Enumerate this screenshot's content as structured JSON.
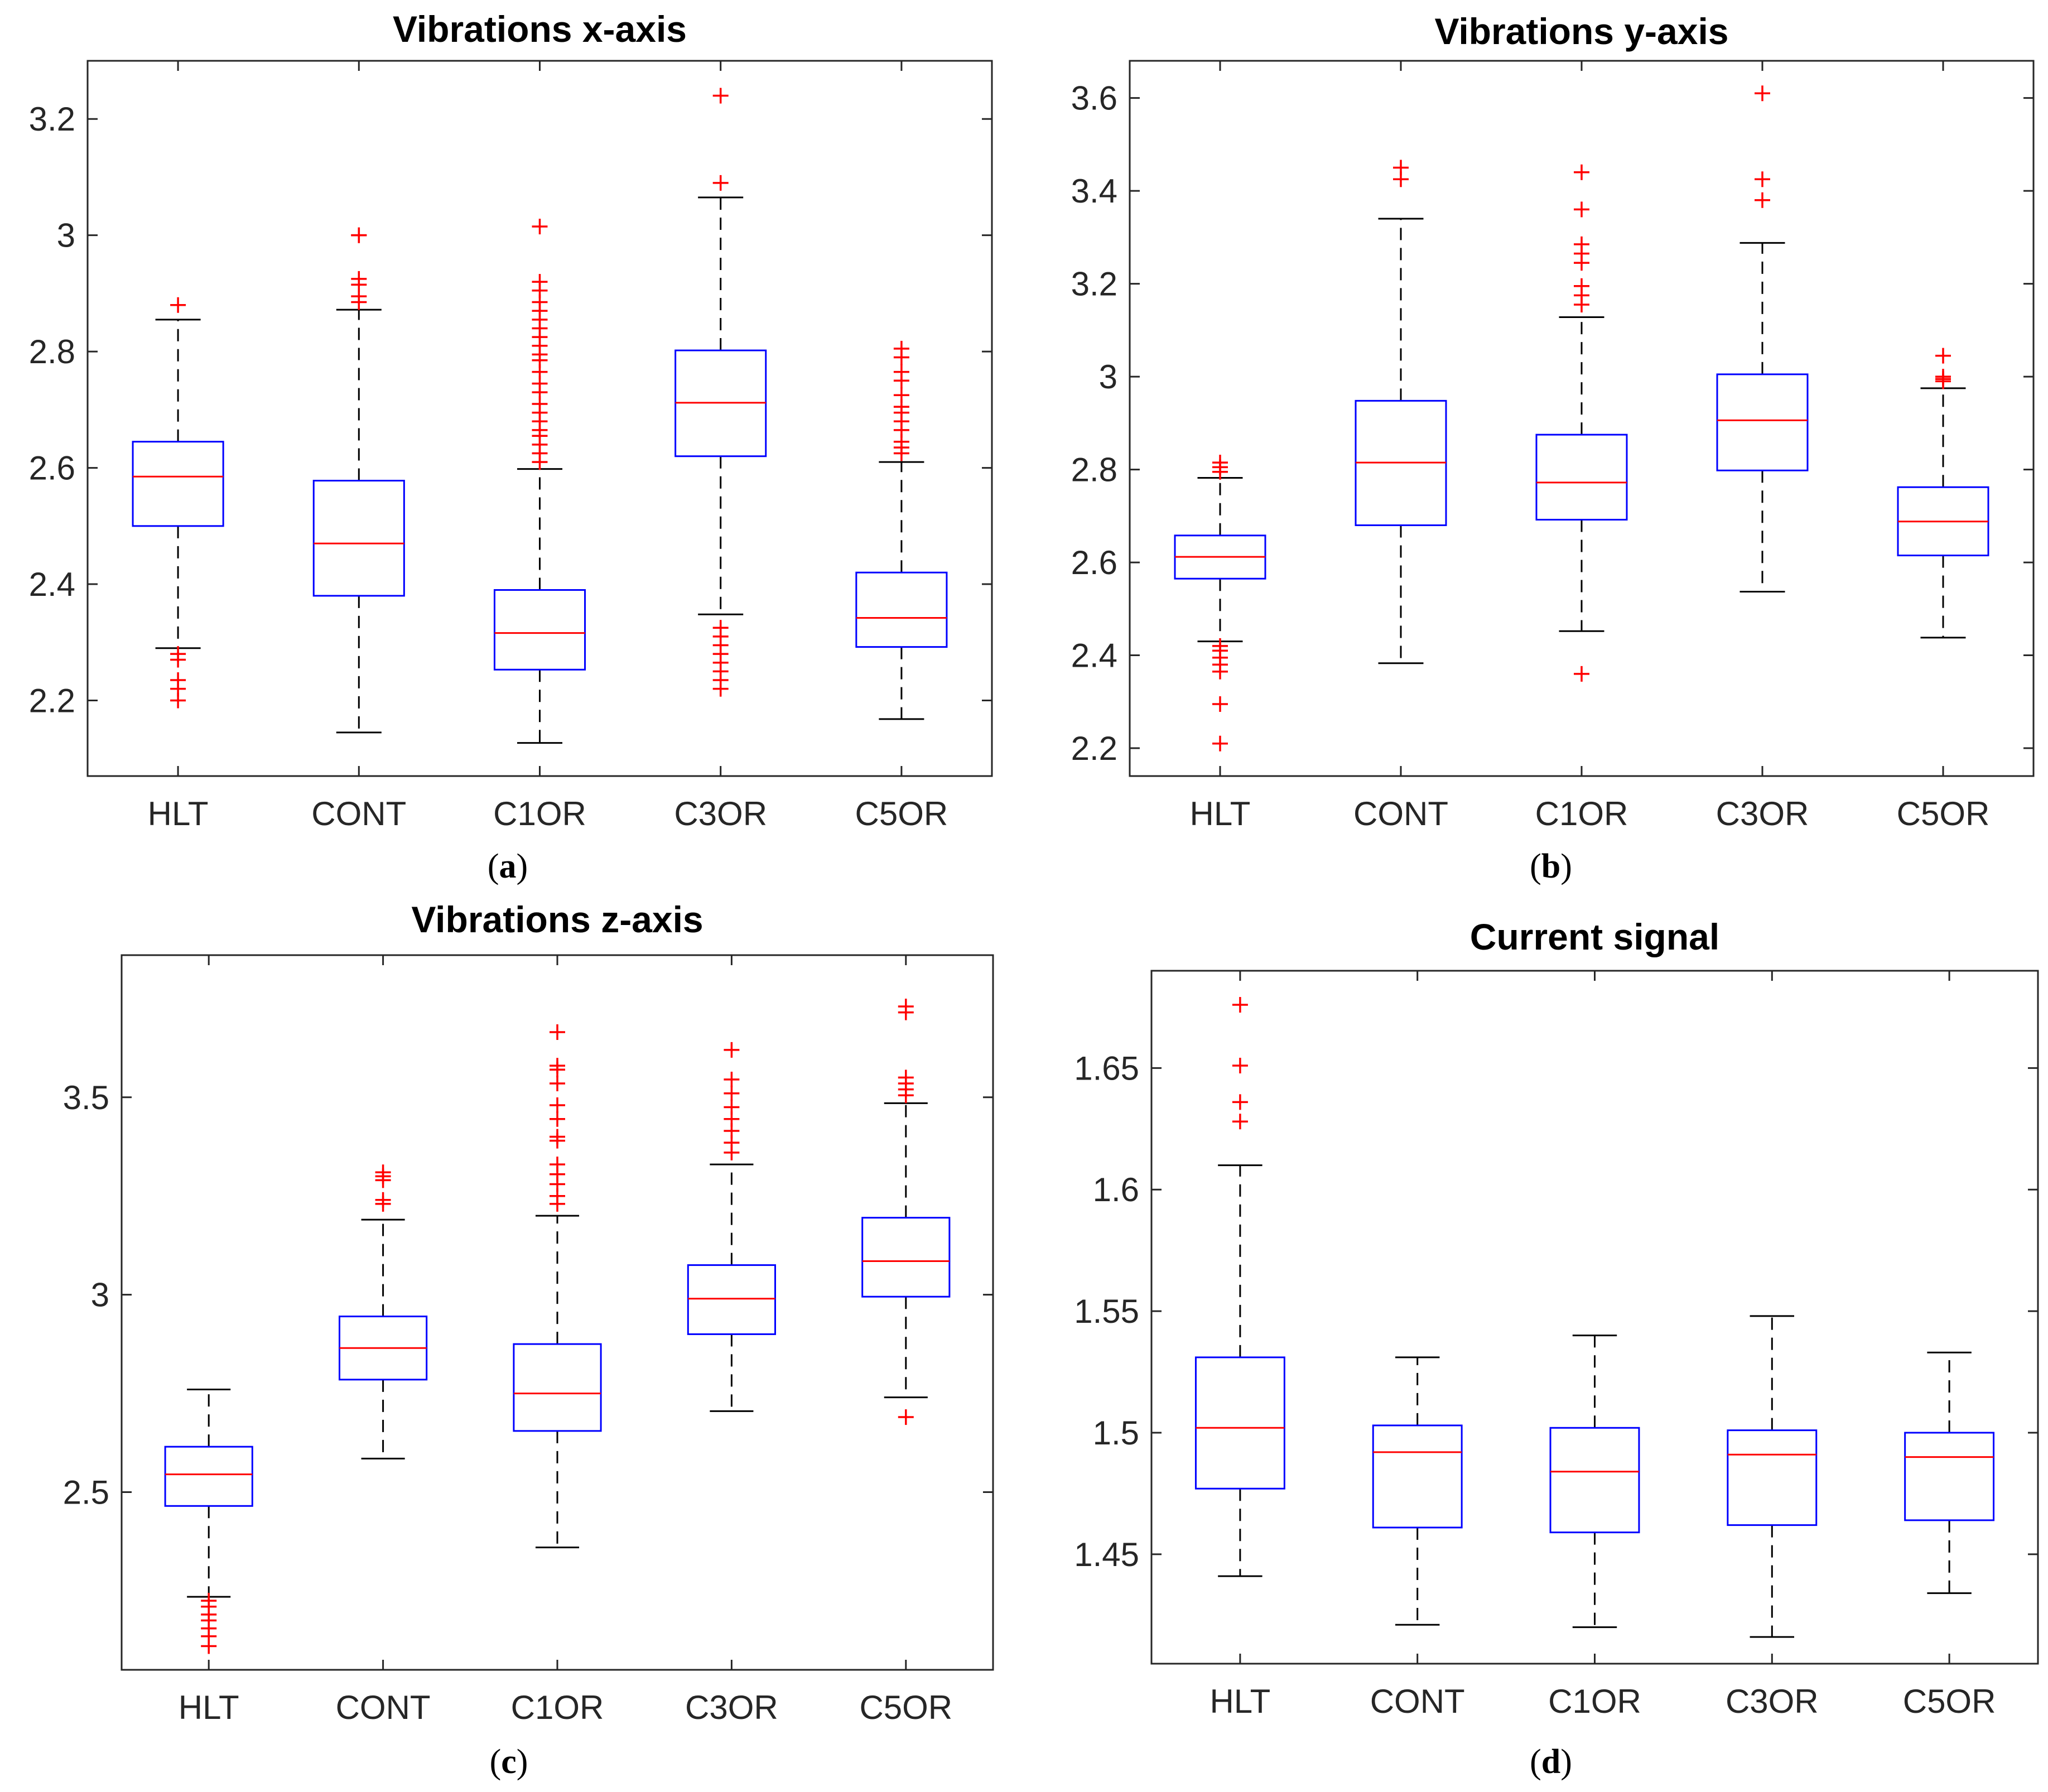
{
  "chart_data": [
    {
      "id": "a",
      "type": "box",
      "title": "Vibrations x-axis",
      "panel_label": "a",
      "categories": [
        "HLT",
        "CONT",
        "C1OR",
        "C3OR",
        "C5OR"
      ],
      "ylim": [
        2.07,
        3.3
      ],
      "yticks": [
        2.2,
        2.4,
        2.6,
        2.8,
        3,
        3.2
      ],
      "ytick_labels": [
        "2.2",
        "2.4",
        "2.6",
        "2.8",
        "3",
        "3.2"
      ],
      "boxes": [
        {
          "whisker_low": 2.29,
          "q1": 2.5,
          "median": 2.585,
          "q3": 2.645,
          "whisker_high": 2.855,
          "outliers": [
            2.88,
            2.28,
            2.27,
            2.235,
            2.22,
            2.2
          ]
        },
        {
          "whisker_low": 2.145,
          "q1": 2.38,
          "median": 2.47,
          "q3": 2.578,
          "whisker_high": 2.872,
          "outliers": [
            3.0,
            3.0,
            2.925,
            2.915,
            2.895,
            2.885
          ]
        },
        {
          "whisker_low": 2.127,
          "q1": 2.253,
          "median": 2.316,
          "q3": 2.39,
          "whisker_high": 2.598,
          "outliers": [
            3.015,
            2.92,
            2.905,
            2.885,
            2.87,
            2.855,
            2.84,
            2.825,
            2.81,
            2.795,
            2.785,
            2.765,
            2.745,
            2.73,
            2.71,
            2.695,
            2.68,
            2.665,
            2.655,
            2.64,
            2.625,
            2.61
          ]
        },
        {
          "whisker_low": 2.348,
          "q1": 2.62,
          "median": 2.712,
          "q3": 2.802,
          "whisker_high": 3.065,
          "outliers": [
            3.24,
            3.09,
            2.325,
            2.31,
            2.295,
            2.28,
            2.265,
            2.25,
            2.235,
            2.22
          ]
        },
        {
          "whisker_low": 2.168,
          "q1": 2.292,
          "median": 2.342,
          "q3": 2.42,
          "whisker_high": 2.61,
          "outliers": [
            2.805,
            2.79,
            2.765,
            2.75,
            2.725,
            2.705,
            2.695,
            2.68,
            2.665,
            2.645,
            2.635,
            2.625
          ]
        }
      ]
    },
    {
      "id": "b",
      "type": "box",
      "title": "Vibrations y-axis",
      "panel_label": "b",
      "categories": [
        "HLT",
        "CONT",
        "C1OR",
        "C3OR",
        "C5OR"
      ],
      "ylim": [
        2.14,
        3.68
      ],
      "yticks": [
        2.2,
        2.4,
        2.6,
        2.8,
        3,
        3.2,
        3.4,
        3.6
      ],
      "ytick_labels": [
        "2.2",
        "2.4",
        "2.6",
        "2.8",
        "3",
        "3.2",
        "3.4",
        "3.6"
      ],
      "boxes": [
        {
          "whisker_low": 2.43,
          "q1": 2.565,
          "median": 2.612,
          "q3": 2.658,
          "whisker_high": 2.782,
          "outliers": [
            2.815,
            2.805,
            2.795,
            2.42,
            2.41,
            2.395,
            2.38,
            2.365,
            2.295,
            2.21
          ]
        },
        {
          "whisker_low": 2.383,
          "q1": 2.68,
          "median": 2.815,
          "q3": 2.948,
          "whisker_high": 3.34,
          "outliers": [
            3.45,
            3.425
          ]
        },
        {
          "whisker_low": 2.452,
          "q1": 2.692,
          "median": 2.772,
          "q3": 2.875,
          "whisker_high": 3.128,
          "outliers": [
            3.44,
            3.36,
            3.285,
            3.265,
            3.245,
            3.195,
            3.175,
            3.155,
            2.36
          ]
        },
        {
          "whisker_low": 2.537,
          "q1": 2.798,
          "median": 2.906,
          "q3": 3.005,
          "whisker_high": 3.288,
          "outliers": [
            3.61,
            3.425,
            3.38
          ]
        },
        {
          "whisker_low": 2.438,
          "q1": 2.615,
          "median": 2.688,
          "q3": 2.762,
          "whisker_high": 2.975,
          "outliers": [
            3.045,
            3.0,
            2.995,
            2.99
          ]
        }
      ]
    },
    {
      "id": "c",
      "type": "box",
      "title": "Vibrations z-axis",
      "panel_label": "c",
      "categories": [
        "HLT",
        "CONT",
        "C1OR",
        "C3OR",
        "C5OR"
      ],
      "ylim": [
        2.05,
        3.86
      ],
      "yticks": [
        2.5,
        3,
        3.5
      ],
      "ytick_labels": [
        "2.5",
        "3",
        "3.5"
      ],
      "boxes": [
        {
          "whisker_low": 2.235,
          "q1": 2.465,
          "median": 2.545,
          "q3": 2.615,
          "whisker_high": 2.76,
          "outliers": [
            2.225,
            2.21,
            2.19,
            2.175,
            2.155,
            2.135,
            2.11
          ]
        },
        {
          "whisker_low": 2.585,
          "q1": 2.785,
          "median": 2.865,
          "q3": 2.945,
          "whisker_high": 3.19,
          "outliers": [
            3.31,
            3.3,
            3.29,
            3.24,
            3.23
          ]
        },
        {
          "whisker_low": 2.36,
          "q1": 2.655,
          "median": 2.75,
          "q3": 2.875,
          "whisker_high": 3.2,
          "outliers": [
            3.665,
            3.58,
            3.57,
            3.535,
            3.48,
            3.445,
            3.4,
            3.39,
            3.33,
            3.305,
            3.28,
            3.25,
            3.23
          ]
        },
        {
          "whisker_low": 2.705,
          "q1": 2.9,
          "median": 2.99,
          "q3": 3.075,
          "whisker_high": 3.33,
          "outliers": [
            3.62,
            3.545,
            3.51,
            3.475,
            3.445,
            3.415,
            3.385,
            3.36
          ]
        },
        {
          "whisker_low": 2.74,
          "q1": 2.995,
          "median": 3.085,
          "q3": 3.195,
          "whisker_high": 3.485,
          "outliers": [
            3.73,
            3.715,
            3.55,
            3.535,
            3.52,
            3.505,
            2.69
          ]
        }
      ]
    },
    {
      "id": "d",
      "type": "box",
      "title": "Current signal",
      "panel_label": "d",
      "categories": [
        "HLT",
        "CONT",
        "C1OR",
        "C3OR",
        "C5OR"
      ],
      "ylim": [
        1.405,
        1.69
      ],
      "yticks": [
        1.45,
        1.5,
        1.55,
        1.6,
        1.65
      ],
      "ytick_labels": [
        "1.45",
        "1.5",
        "1.55",
        "1.6",
        "1.65"
      ],
      "boxes": [
        {
          "whisker_low": 1.441,
          "q1": 1.477,
          "median": 1.502,
          "q3": 1.531,
          "whisker_high": 1.61,
          "outliers": [
            1.676,
            1.651,
            1.636,
            1.628
          ]
        },
        {
          "whisker_low": 1.421,
          "q1": 1.461,
          "median": 1.492,
          "q3": 1.503,
          "whisker_high": 1.531,
          "outliers": []
        },
        {
          "whisker_low": 1.42,
          "q1": 1.459,
          "median": 1.484,
          "q3": 1.502,
          "whisker_high": 1.54,
          "outliers": []
        },
        {
          "whisker_low": 1.416,
          "q1": 1.462,
          "median": 1.491,
          "q3": 1.501,
          "whisker_high": 1.548,
          "outliers": []
        },
        {
          "whisker_low": 1.434,
          "q1": 1.464,
          "median": 1.49,
          "q3": 1.5,
          "whisker_high": 1.533,
          "outliers": []
        }
      ]
    }
  ],
  "colors": {
    "box": "#0000ff",
    "median": "#ff0000",
    "outlier": "#ff0000",
    "whisker": "#000000",
    "axis": "#262626"
  }
}
